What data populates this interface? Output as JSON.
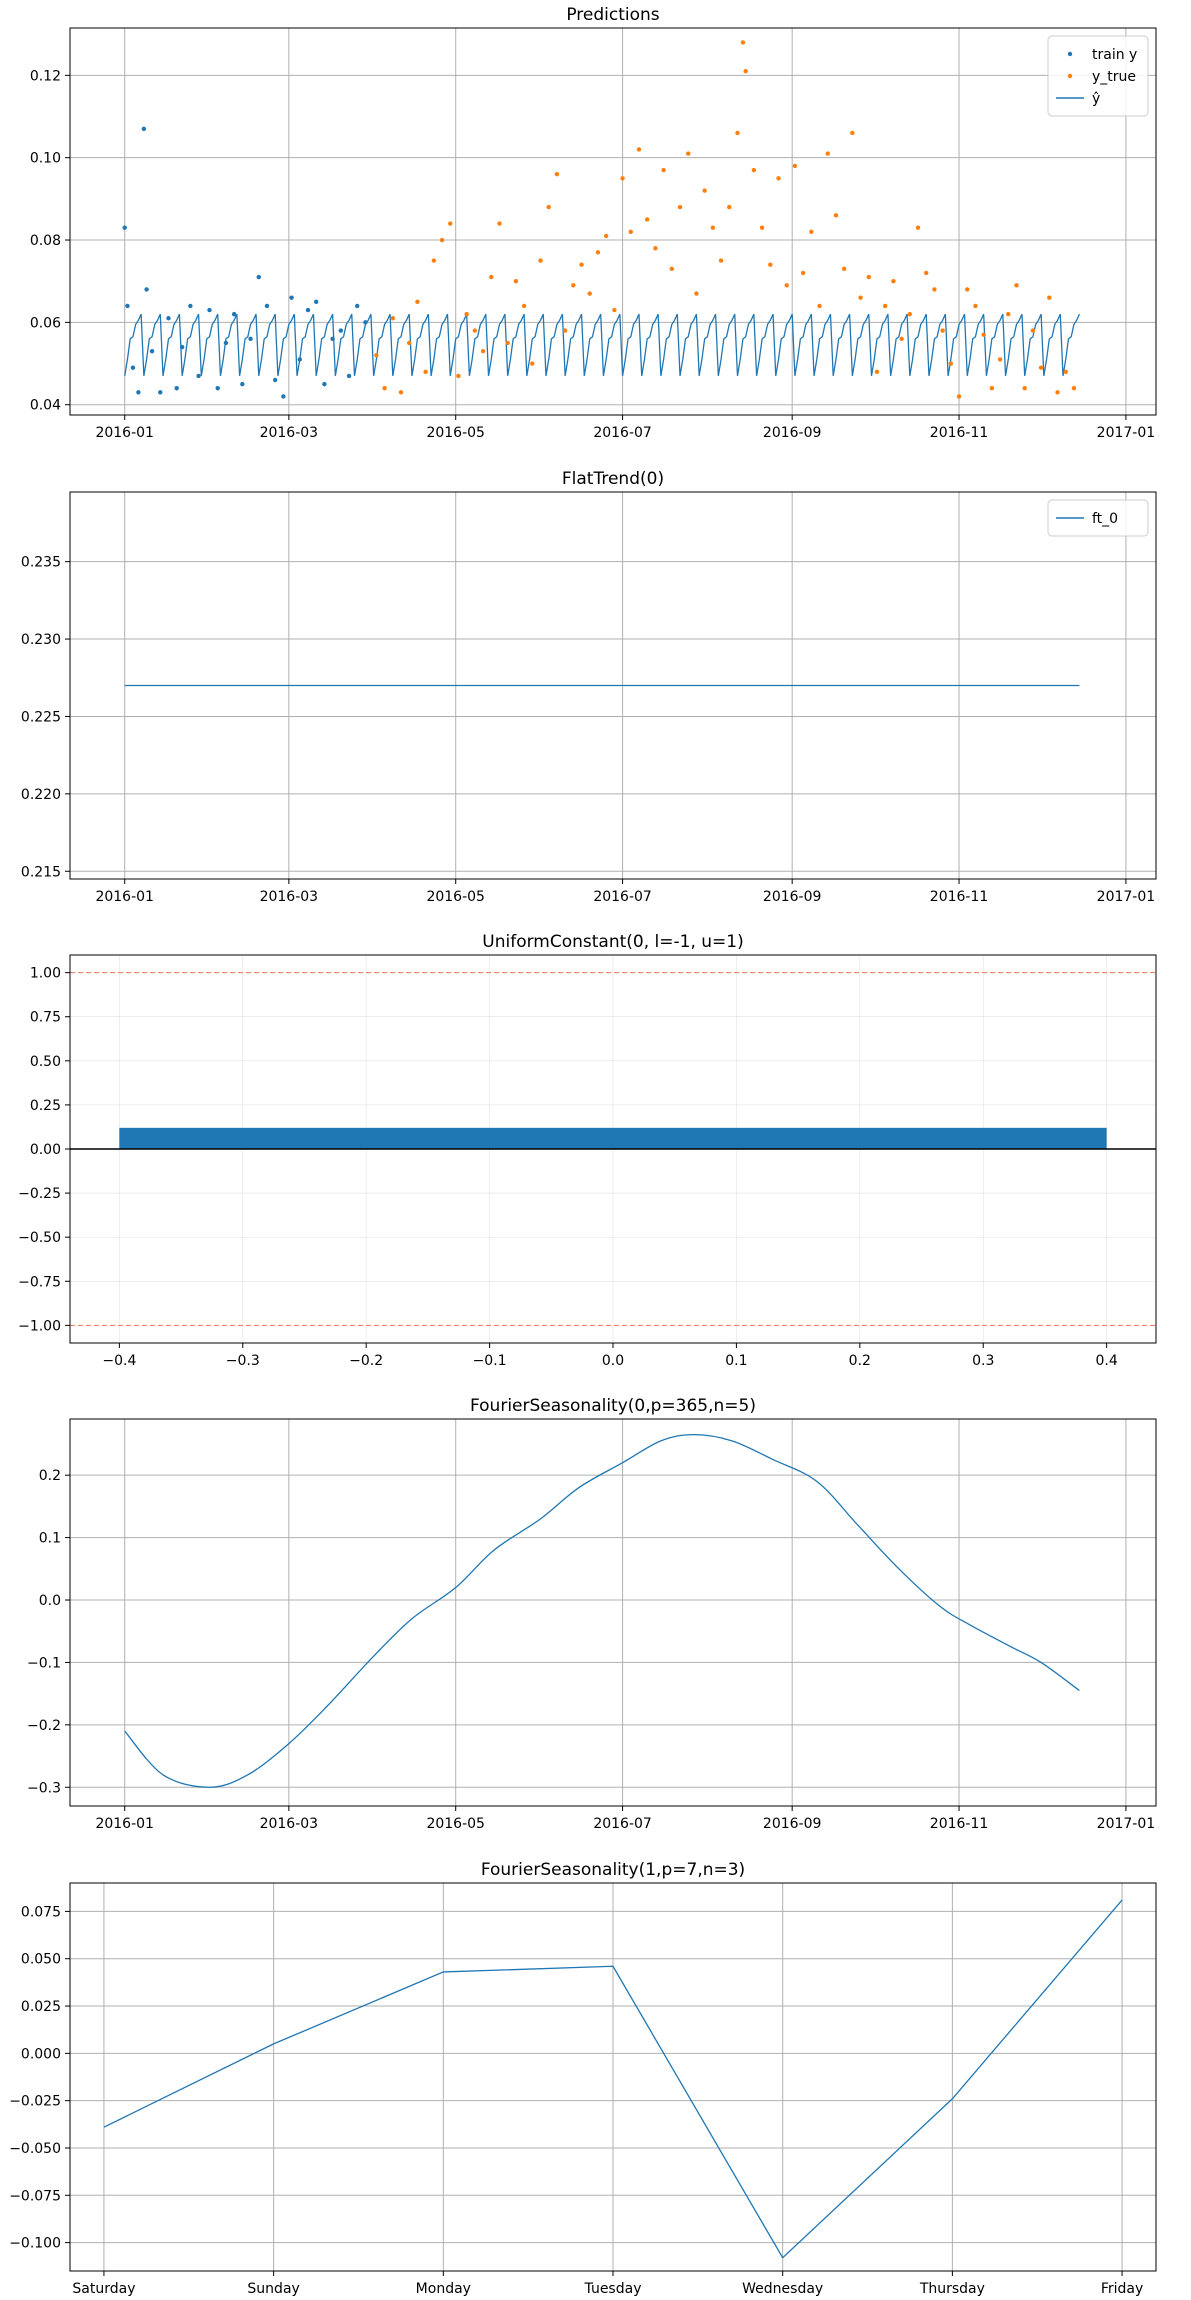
{
  "colors": {
    "blue": "#1f77b4",
    "orange": "#ff7f0e",
    "grid": "#b0b0b0",
    "ref_line": "#e8735a"
  },
  "chart_data": [
    {
      "type": "scatter",
      "title": "Predictions",
      "xlabel": "",
      "ylabel": "",
      "x_axis": "date",
      "xlim": [
        "2015-12-12",
        "2017-01-12"
      ],
      "ylim": [
        0.0375,
        0.1315
      ],
      "xticks": [
        "2016-01",
        "2016-03",
        "2016-05",
        "2016-07",
        "2016-09",
        "2016-11",
        "2017-01"
      ],
      "yticks": [
        "0.04",
        "0.06",
        "0.08",
        "0.10",
        "0.12"
      ],
      "grid": true,
      "legend": {
        "placement": "top-right",
        "entries": [
          "train y",
          "y_true",
          "ŷ"
        ]
      },
      "series": [
        {
          "name": "train y",
          "kind": "points",
          "color": "#1f77b4",
          "x": [
            "2016-01-01",
            "2016-01-02",
            "2016-01-04",
            "2016-01-06",
            "2016-01-08",
            "2016-01-09",
            "2016-01-11",
            "2016-01-14",
            "2016-01-17",
            "2016-01-20",
            "2016-01-22",
            "2016-01-25",
            "2016-01-28",
            "2016-02-01",
            "2016-02-04",
            "2016-02-07",
            "2016-02-10",
            "2016-02-13",
            "2016-02-16",
            "2016-02-19",
            "2016-02-22",
            "2016-02-25",
            "2016-02-28",
            "2016-03-02",
            "2016-03-05",
            "2016-03-08",
            "2016-03-11",
            "2016-03-14",
            "2016-03-17",
            "2016-03-20",
            "2016-03-23",
            "2016-03-26",
            "2016-03-29"
          ],
          "y": [
            0.083,
            0.064,
            0.049,
            0.043,
            0.107,
            0.068,
            0.053,
            0.043,
            0.061,
            0.044,
            0.054,
            0.064,
            0.047,
            0.063,
            0.044,
            0.055,
            0.062,
            0.045,
            0.056,
            0.071,
            0.064,
            0.046,
            0.042,
            0.066,
            0.051,
            0.063,
            0.065,
            0.045,
            0.056,
            0.058,
            0.047,
            0.064,
            0.06
          ]
        },
        {
          "name": "y_true",
          "kind": "points",
          "color": "#ff7f0e",
          "x": [
            "2016-04-02",
            "2016-04-05",
            "2016-04-08",
            "2016-04-11",
            "2016-04-14",
            "2016-04-17",
            "2016-04-20",
            "2016-04-23",
            "2016-04-26",
            "2016-04-29",
            "2016-05-02",
            "2016-05-05",
            "2016-05-08",
            "2016-05-11",
            "2016-05-14",
            "2016-05-17",
            "2016-05-20",
            "2016-05-23",
            "2016-05-26",
            "2016-05-29",
            "2016-06-01",
            "2016-06-04",
            "2016-06-07",
            "2016-06-10",
            "2016-06-13",
            "2016-06-16",
            "2016-06-19",
            "2016-06-22",
            "2016-06-25",
            "2016-06-28",
            "2016-07-01",
            "2016-07-04",
            "2016-07-07",
            "2016-07-10",
            "2016-07-13",
            "2016-07-16",
            "2016-07-19",
            "2016-07-22",
            "2016-07-25",
            "2016-07-28",
            "2016-07-31",
            "2016-08-03",
            "2016-08-06",
            "2016-08-09",
            "2016-08-12",
            "2016-08-14",
            "2016-08-15",
            "2016-08-18",
            "2016-08-21",
            "2016-08-24",
            "2016-08-27",
            "2016-08-30",
            "2016-09-02",
            "2016-09-05",
            "2016-09-08",
            "2016-09-11",
            "2016-09-14",
            "2016-09-17",
            "2016-09-20",
            "2016-09-23",
            "2016-09-26",
            "2016-09-29",
            "2016-10-02",
            "2016-10-05",
            "2016-10-08",
            "2016-10-11",
            "2016-10-14",
            "2016-10-17",
            "2016-10-20",
            "2016-10-23",
            "2016-10-26",
            "2016-10-29",
            "2016-11-01",
            "2016-11-04",
            "2016-11-07",
            "2016-11-10",
            "2016-11-13",
            "2016-11-16",
            "2016-11-19",
            "2016-11-22",
            "2016-11-25",
            "2016-11-28",
            "2016-12-01",
            "2016-12-04",
            "2016-12-07",
            "2016-12-10",
            "2016-12-13"
          ],
          "y": [
            0.052,
            0.044,
            0.061,
            0.043,
            0.055,
            0.065,
            0.048,
            0.075,
            0.08,
            0.084,
            0.047,
            0.062,
            0.058,
            0.053,
            0.071,
            0.084,
            0.055,
            0.07,
            0.064,
            0.05,
            0.075,
            0.088,
            0.096,
            0.058,
            0.069,
            0.074,
            0.067,
            0.077,
            0.081,
            0.063,
            0.095,
            0.082,
            0.102,
            0.085,
            0.078,
            0.097,
            0.073,
            0.088,
            0.101,
            0.067,
            0.092,
            0.083,
            0.075,
            0.088,
            0.106,
            0.128,
            0.121,
            0.097,
            0.083,
            0.074,
            0.095,
            0.069,
            0.098,
            0.072,
            0.082,
            0.064,
            0.101,
            0.086,
            0.073,
            0.106,
            0.066,
            0.071,
            0.048,
            0.064,
            0.07,
            0.056,
            0.062,
            0.083,
            0.072,
            0.068,
            0.058,
            0.05,
            0.042,
            0.068,
            0.064,
            0.057,
            0.044,
            0.051,
            0.062,
            0.069,
            0.044,
            0.058,
            0.049,
            0.066,
            0.043,
            0.048,
            0.044
          ]
        },
        {
          "name": "ŷ",
          "kind": "line",
          "color": "#1f77b4",
          "start": "2016-01-01",
          "end": "2016-12-15",
          "mean": 0.0555,
          "weekly_pattern": [
            0.047,
            0.051,
            0.056,
            0.0565,
            0.0595,
            0.0605,
            0.062
          ]
        }
      ]
    },
    {
      "type": "line",
      "title": "FlatTrend(0)",
      "xlabel": "",
      "ylabel": "",
      "x_axis": "date",
      "xlim": [
        "2015-12-12",
        "2017-01-12"
      ],
      "ylim": [
        0.2145,
        0.2395
      ],
      "xticks": [
        "2016-01",
        "2016-03",
        "2016-05",
        "2016-07",
        "2016-09",
        "2016-11",
        "2017-01"
      ],
      "yticks": [
        "0.215",
        "0.220",
        "0.225",
        "0.230",
        "0.235"
      ],
      "grid": true,
      "legend": {
        "placement": "top-right",
        "entries": [
          "ft_0"
        ]
      },
      "series": [
        {
          "name": "ft_0",
          "color": "#1f77b4",
          "x": [
            "2016-01-01",
            "2016-12-15"
          ],
          "y": [
            0.227,
            0.227
          ]
        }
      ]
    },
    {
      "type": "bar",
      "title": "UniformConstant(0, l=-1, u=1)",
      "xlabel": "",
      "ylabel": "",
      "xlim": [
        -0.44,
        0.44
      ],
      "ylim": [
        -1.1,
        1.1
      ],
      "xticks": [
        "−0.4",
        "−0.3",
        "−0.2",
        "−0.1",
        "0.0",
        "0.1",
        "0.2",
        "0.3",
        "0.4"
      ],
      "yticks": [
        "−1.00",
        "−0.75",
        "−0.50",
        "−0.25",
        "0.00",
        "0.25",
        "0.50",
        "0.75",
        "1.00"
      ],
      "grid": true,
      "reference_lines": [
        1.0,
        -1.0,
        0.0
      ],
      "bars": [
        {
          "x0": -0.4,
          "x1": 0.4,
          "value": 0.12,
          "color": "#1f77b4"
        }
      ]
    },
    {
      "type": "line",
      "title": "FourierSeasonality(0,p=365,n=5)",
      "xlabel": "",
      "ylabel": "",
      "x_axis": "date",
      "xlim": [
        "2015-12-12",
        "2017-01-12"
      ],
      "ylim": [
        -0.33,
        0.29
      ],
      "xticks": [
        "2016-01",
        "2016-03",
        "2016-05",
        "2016-07",
        "2016-09",
        "2016-11",
        "2017-01"
      ],
      "yticks": [
        "−0.3",
        "−0.2",
        "−0.1",
        "0.0",
        "0.1",
        "0.2"
      ],
      "grid": true,
      "series": [
        {
          "name": "",
          "color": "#1f77b4",
          "x": [
            "2016-01-01",
            "2016-01-15",
            "2016-02-01",
            "2016-02-15",
            "2016-03-01",
            "2016-03-15",
            "2016-04-01",
            "2016-04-15",
            "2016-05-01",
            "2016-05-15",
            "2016-06-01",
            "2016-06-15",
            "2016-07-01",
            "2016-07-15",
            "2016-07-27",
            "2016-08-10",
            "2016-08-25",
            "2016-09-10",
            "2016-09-25",
            "2016-10-10",
            "2016-10-25",
            "2016-11-05",
            "2016-11-20",
            "2016-12-01",
            "2016-12-15"
          ],
          "y": [
            -0.21,
            -0.28,
            -0.3,
            -0.28,
            -0.23,
            -0.17,
            -0.09,
            -0.03,
            0.02,
            0.08,
            0.13,
            0.18,
            0.22,
            0.255,
            0.265,
            0.255,
            0.225,
            0.19,
            0.12,
            0.05,
            -0.01,
            -0.04,
            -0.075,
            -0.1,
            -0.145
          ]
        }
      ]
    },
    {
      "type": "line",
      "title": "FourierSeasonality(1,p=7,n=3)",
      "xlabel": "",
      "ylabel": "",
      "xlim": [
        -0.2,
        6.2
      ],
      "ylim": [
        -0.115,
        0.09
      ],
      "categories": [
        "Saturday",
        "Sunday",
        "Monday",
        "Tuesday",
        "Wednesday",
        "Thursday",
        "Friday"
      ],
      "yticks": [
        "−0.100",
        "−0.075",
        "−0.050",
        "−0.025",
        "0.000",
        "0.025",
        "0.050",
        "0.075"
      ],
      "grid": true,
      "series": [
        {
          "name": "",
          "color": "#1f77b4",
          "values": [
            -0.039,
            0.005,
            0.043,
            0.046,
            -0.108,
            -0.024,
            0.081
          ]
        }
      ]
    }
  ]
}
